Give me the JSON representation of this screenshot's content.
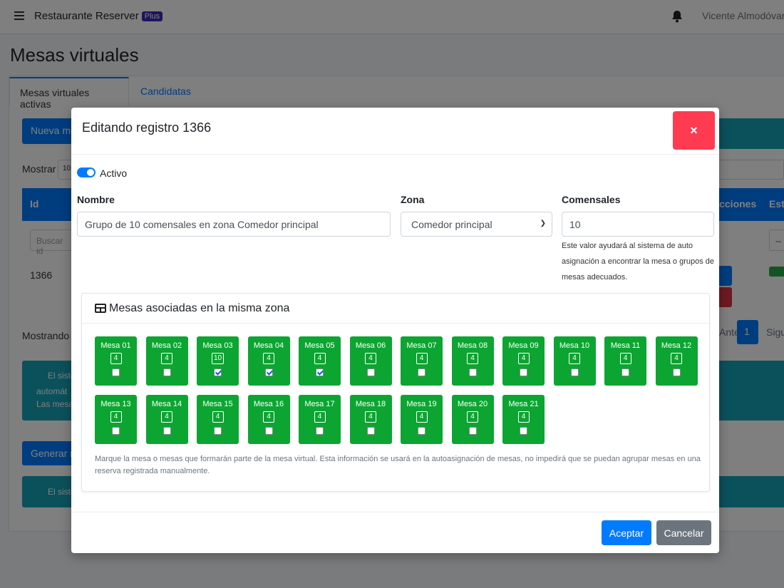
{
  "navbar": {
    "brand": "Restaurante Reserver",
    "badge": "Plus",
    "user": "Vicente Almodóvar"
  },
  "page": {
    "title": "Mesas virtuales"
  },
  "tabs": [
    {
      "label": "Mesas virtuales activas"
    },
    {
      "label": "Candidatas"
    }
  ],
  "background": {
    "new_button": "Nueva mesa",
    "show_label": "Mostrar",
    "show_value": "10",
    "columns": {
      "id": "Id",
      "actions": "Acciones",
      "status": "Est"
    },
    "search_placeholder": "Buscar id",
    "status_filter": "--",
    "row_id": "1366",
    "showing": "Mostrando",
    "pagination": {
      "prev": "Anterior",
      "page": "1",
      "next": "Siguiente"
    },
    "info1_line1": "El sistema ... veces se promocio",
    "info1_line2": "automát",
    "info1_line3": "Las mesas ... a Google.",
    "generate_button": "Generar mesas",
    "info2": "El sistema"
  },
  "modal": {
    "title": "Editando registro 1366",
    "close": "×",
    "active_label": "Activo",
    "name_label": "Nombre",
    "name_value": "Grupo de 10 comensales en zona Comedor principal",
    "zone_label": "Zona",
    "zone_value": "Comedor principal",
    "diners_label": "Comensales",
    "diners_value": "10",
    "diners_help": "Este valor ayudará al sistema de auto asignación a encontrar la mesa o grupos de mesas adecuados.",
    "tables_title": "Mesas asociadas en la misma zona",
    "tables": [
      {
        "name": "Mesa 01",
        "capacity": "4",
        "checked": false
      },
      {
        "name": "Mesa 02",
        "capacity": "4",
        "checked": false
      },
      {
        "name": "Mesa 03",
        "capacity": "10",
        "checked": true
      },
      {
        "name": "Mesa 04",
        "capacity": "4",
        "checked": true
      },
      {
        "name": "Mesa 05",
        "capacity": "4",
        "checked": true
      },
      {
        "name": "Mesa 06",
        "capacity": "4",
        "checked": false
      },
      {
        "name": "Mesa 07",
        "capacity": "4",
        "checked": false
      },
      {
        "name": "Mesa 08",
        "capacity": "4",
        "checked": false
      },
      {
        "name": "Mesa 09",
        "capacity": "4",
        "checked": false
      },
      {
        "name": "Mesa 10",
        "capacity": "4",
        "checked": false
      },
      {
        "name": "Mesa 11",
        "capacity": "4",
        "checked": false
      },
      {
        "name": "Mesa 12",
        "capacity": "4",
        "checked": false
      },
      {
        "name": "Mesa 13",
        "capacity": "4",
        "checked": false
      },
      {
        "name": "Mesa 14",
        "capacity": "4",
        "checked": false
      },
      {
        "name": "Mesa 15",
        "capacity": "4",
        "checked": false
      },
      {
        "name": "Mesa 16",
        "capacity": "4",
        "checked": false
      },
      {
        "name": "Mesa 17",
        "capacity": "4",
        "checked": false
      },
      {
        "name": "Mesa 18",
        "capacity": "4",
        "checked": false
      },
      {
        "name": "Mesa 19",
        "capacity": "4",
        "checked": false
      },
      {
        "name": "Mesa 20",
        "capacity": "4",
        "checked": false
      },
      {
        "name": "Mesa 21",
        "capacity": "4",
        "checked": false
      }
    ],
    "tables_note": "Marque la mesa o mesas que formarán parte de la mesa virtual. Esta información se usará en la autoasignación de mesas, no impedirá que se puedan agrupar mesas en una reserva registrada manualmente.",
    "accept": "Aceptar",
    "cancel": "Cancelar"
  },
  "colors": {
    "primary": "#007bff",
    "table_green": "#0ca532",
    "close_red": "#ff3b52",
    "secondary": "#6c757d"
  }
}
